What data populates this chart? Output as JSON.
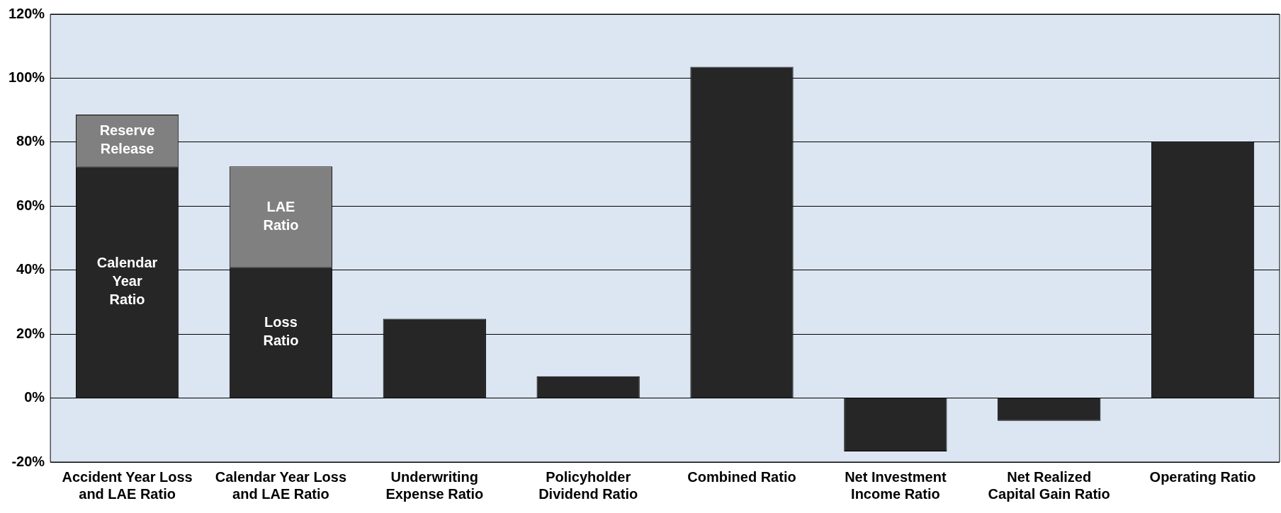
{
  "chart_data": {
    "type": "bar",
    "stacked": true,
    "categories": [
      "Accident Year Loss\nand LAE Ratio",
      "Calendar Year Loss\nand LAE Ratio",
      "Underwriting\nExpense Ratio",
      "Policyholder\nDividend Ratio",
      "Combined Ratio",
      "Net Investment\nIncome Ratio",
      "Net Realized\nCapital Gain Ratio",
      "Operating Ratio"
    ],
    "series": [
      {
        "color": "#262626",
        "values": [
          72.4,
          41.0,
          24.8,
          6.8,
          103.5,
          -16.7,
          -7.1,
          80.0
        ],
        "value_labels": [
          "Calendar\nYear\nRatio",
          "Loss\nRatio",
          null,
          null,
          null,
          null,
          null,
          null
        ]
      },
      {
        "color": "#808080",
        "values": [
          16.2,
          31.4,
          null,
          null,
          null,
          null,
          null,
          null
        ],
        "value_labels": [
          "Reserve\nRelease",
          "LAE\nRatio",
          null,
          null,
          null,
          null,
          null,
          null
        ]
      }
    ],
    "ylim": [
      -20,
      120
    ],
    "yticks": [
      {
        "value": -20,
        "label": "-20%"
      },
      {
        "value": 0,
        "label": "0%"
      },
      {
        "value": 20,
        "label": "20%"
      },
      {
        "value": 40,
        "label": "40%"
      },
      {
        "value": 60,
        "label": "60%"
      },
      {
        "value": 80,
        "label": "80%"
      },
      {
        "value": 100,
        "label": "100%"
      },
      {
        "value": 120,
        "label": "120%"
      }
    ],
    "grid": "y",
    "legend": false
  }
}
